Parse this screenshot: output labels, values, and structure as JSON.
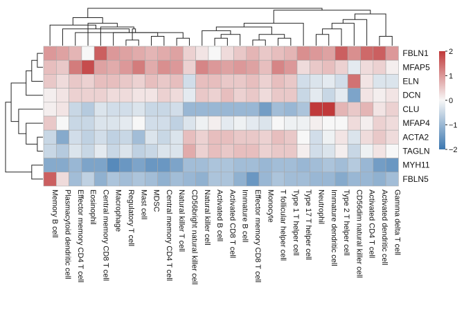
{
  "chart_data": {
    "type": "heatmap",
    "title": "",
    "rows": [
      "FBLN1",
      "MFAP5",
      "ELN",
      "DCN",
      "CLU",
      "MFAP4",
      "ACTA2",
      "TAGLN",
      "MYH11",
      "FBLN5"
    ],
    "columns": [
      "Memory B cell",
      "Plasmacytoid dendritic cell",
      "Effector memory CD4 T cell",
      "Eosinophil",
      "Central memory CD8 T cell",
      "Macrophage",
      "Regulatory T cell",
      "Mast cell",
      "MDSC",
      "Central memory CD4 T cell",
      "Natural killer T cell",
      "CD56bright natural killer cell",
      "Natural killer cell",
      "Activated B cell",
      "Activated CD8 T cell",
      "Immature  B cell",
      "Effector memory CD8 T cell",
      "Monocyte",
      "T follicular helper cell",
      "Type 1 T helper cell",
      "Type 17 T helper cell",
      "Neutrophil",
      "Immature dendritic cell",
      "Type 2 T helper cell",
      "CD56dim natural killer cell",
      "Activated CD4 T cell",
      "Activated dendritic cell",
      "Gamma delta T cell"
    ],
    "values": [
      [
        1.0,
        0.9,
        0.7,
        0.0,
        1.6,
        1.0,
        0.9,
        0.8,
        0.7,
        0.8,
        0.9,
        0.4,
        0.2,
        0.0,
        0.3,
        0.5,
        0.7,
        0.5,
        0.6,
        0.7,
        1.1,
        1.0,
        0.9,
        1.6,
        1.1,
        1.5,
        1.6,
        1.0
      ],
      [
        0.6,
        0.5,
        1.3,
        1.8,
        0.9,
        0.8,
        1.0,
        1.3,
        0.8,
        1.1,
        1.0,
        0.4,
        1.2,
        1.0,
        0.9,
        1.0,
        0.9,
        0.6,
        1.2,
        1.0,
        0.3,
        0.5,
        0.6,
        0.4,
        -0.2,
        0.3,
        0.4,
        0.1
      ],
      [
        0.5,
        0.3,
        0.5,
        0.4,
        0.6,
        0.6,
        0.5,
        0.4,
        0.6,
        0.5,
        0.6,
        -0.4,
        0.6,
        0.6,
        0.5,
        0.5,
        0.6,
        0.4,
        0.6,
        0.5,
        -0.4,
        -0.3,
        -0.2,
        -0.4,
        1.4,
        0.2,
        -0.3,
        -0.3
      ],
      [
        0.1,
        0.2,
        0.4,
        0.4,
        0.4,
        0.3,
        0.3,
        0.2,
        0.2,
        0.4,
        0.3,
        -0.2,
        0.5,
        0.4,
        0.6,
        0.4,
        0.5,
        0.3,
        0.5,
        0.5,
        -0.5,
        -0.2,
        -0.5,
        -0.2,
        -1.3,
        0.2,
        0.1,
        0.2
      ],
      [
        0.1,
        0.2,
        -0.5,
        -0.7,
        -0.3,
        -0.4,
        -0.4,
        -0.3,
        -0.5,
        -0.5,
        -0.4,
        -1.0,
        -1.0,
        -1.0,
        -1.0,
        -1.0,
        -1.0,
        -1.4,
        -0.9,
        -1.0,
        -0.8,
        2.0,
        2.2,
        0.7,
        0.5,
        0.7,
        0.2,
        0.4
      ],
      [
        0.5,
        0.0,
        -0.5,
        -0.5,
        -0.3,
        -0.3,
        -0.2,
        0.0,
        -0.4,
        -0.4,
        -0.6,
        -0.3,
        -0.1,
        0.1,
        -0.2,
        -0.1,
        -0.2,
        -0.3,
        0.0,
        -0.1,
        -0.1,
        0.1,
        0.0,
        0.0,
        0.3,
        0.1,
        0.4,
        0.3
      ],
      [
        -0.5,
        -1.2,
        -0.4,
        -0.6,
        -0.4,
        -0.6,
        -0.5,
        -0.9,
        -0.3,
        -0.5,
        -0.3,
        0.6,
        0.4,
        0.6,
        0.6,
        0.5,
        0.5,
        0.4,
        0.6,
        0.5,
        0.0,
        -0.4,
        -0.1,
        0.2,
        -0.3,
        0.3,
        0.5,
        0.3
      ],
      [
        -0.5,
        -0.7,
        -0.3,
        -0.5,
        -0.2,
        -0.5,
        -0.3,
        -0.6,
        -0.5,
        -0.3,
        -0.3,
        0.8,
        0.4,
        0.6,
        0.5,
        0.6,
        0.6,
        0.4,
        0.5,
        0.5,
        0.1,
        -0.4,
        -0.3,
        0.1,
        -0.5,
        -0.1,
        0.2,
        0.0
      ],
      [
        -1.2,
        -1.2,
        -1.0,
        -1.3,
        -1.3,
        -1.7,
        -1.5,
        -1.3,
        -1.5,
        -1.5,
        -1.3,
        -0.9,
        -0.9,
        -0.8,
        -0.8,
        -0.9,
        -0.9,
        -1.0,
        -0.9,
        -0.9,
        -1.0,
        -0.9,
        -0.8,
        -0.9,
        -0.7,
        -1.0,
        -1.4,
        -1.5
      ],
      [
        1.6,
        0.3,
        -0.9,
        -0.6,
        -1.1,
        -0.8,
        -0.9,
        -0.8,
        -0.9,
        -1.1,
        -0.9,
        -1.0,
        -1.1,
        -0.8,
        -0.8,
        -1.1,
        -1.5,
        -1.0,
        -0.8,
        -0.9,
        -0.9,
        -1.0,
        -1.0,
        -1.2,
        -1.0,
        -1.0,
        -1.1,
        -0.9
      ]
    ],
    "colorbar": {
      "min": -2,
      "max": 2,
      "ticks": [
        2,
        1,
        0,
        -1,
        -2
      ],
      "tick_labels": [
        "2",
        "1",
        "0",
        "−1",
        "−2"
      ],
      "low_color": "#3b77b0",
      "mid_color": "#f7f7f7",
      "high_color": "#c0393a"
    },
    "row_dendrogram": {
      "merges": [
        [
          0,
          1
        ],
        [
          10,
          2
        ],
        [
          11,
          3
        ],
        [
          8,
          9
        ],
        [
          6,
          7
        ],
        [
          14,
          5
        ],
        [
          15,
          4
        ],
        [
          12,
          16
        ],
        [
          17,
          13
        ]
      ],
      "heights": [
        0.15,
        0.3,
        0.45,
        0.3,
        0.15,
        0.45,
        0.65,
        0.85,
        1.0
      ]
    },
    "column_dendrogram": {
      "merges": [
        [
          10,
          11
        ],
        [
          28,
          2
        ],
        [
          29,
          1
        ],
        [
          30,
          0
        ],
        [
          6,
          7
        ],
        [
          8,
          9
        ],
        [
          33,
          5
        ],
        [
          34,
          32
        ],
        [
          35,
          4
        ],
        [
          36,
          3
        ],
        [
          37,
          31
        ],
        [
          13,
          14
        ],
        [
          39,
          15
        ],
        [
          40,
          12
        ],
        [
          16,
          17
        ],
        [
          18,
          19
        ],
        [
          42,
          43
        ],
        [
          44,
          41
        ],
        [
          45,
          20
        ],
        [
          21,
          22
        ],
        [
          47,
          23
        ],
        [
          48,
          24
        ],
        [
          49,
          25
        ],
        [
          26,
          27
        ],
        [
          51,
          50
        ],
        [
          52,
          46
        ],
        [
          53,
          38
        ]
      ],
      "heights": [
        0.2,
        0.35,
        0.45,
        0.55,
        0.15,
        0.25,
        0.35,
        0.45,
        0.5,
        0.6,
        0.75,
        0.2,
        0.3,
        0.4,
        0.15,
        0.2,
        0.3,
        0.5,
        0.6,
        0.3,
        0.45,
        0.6,
        0.7,
        0.25,
        0.85,
        0.95,
        1.0
      ]
    }
  }
}
